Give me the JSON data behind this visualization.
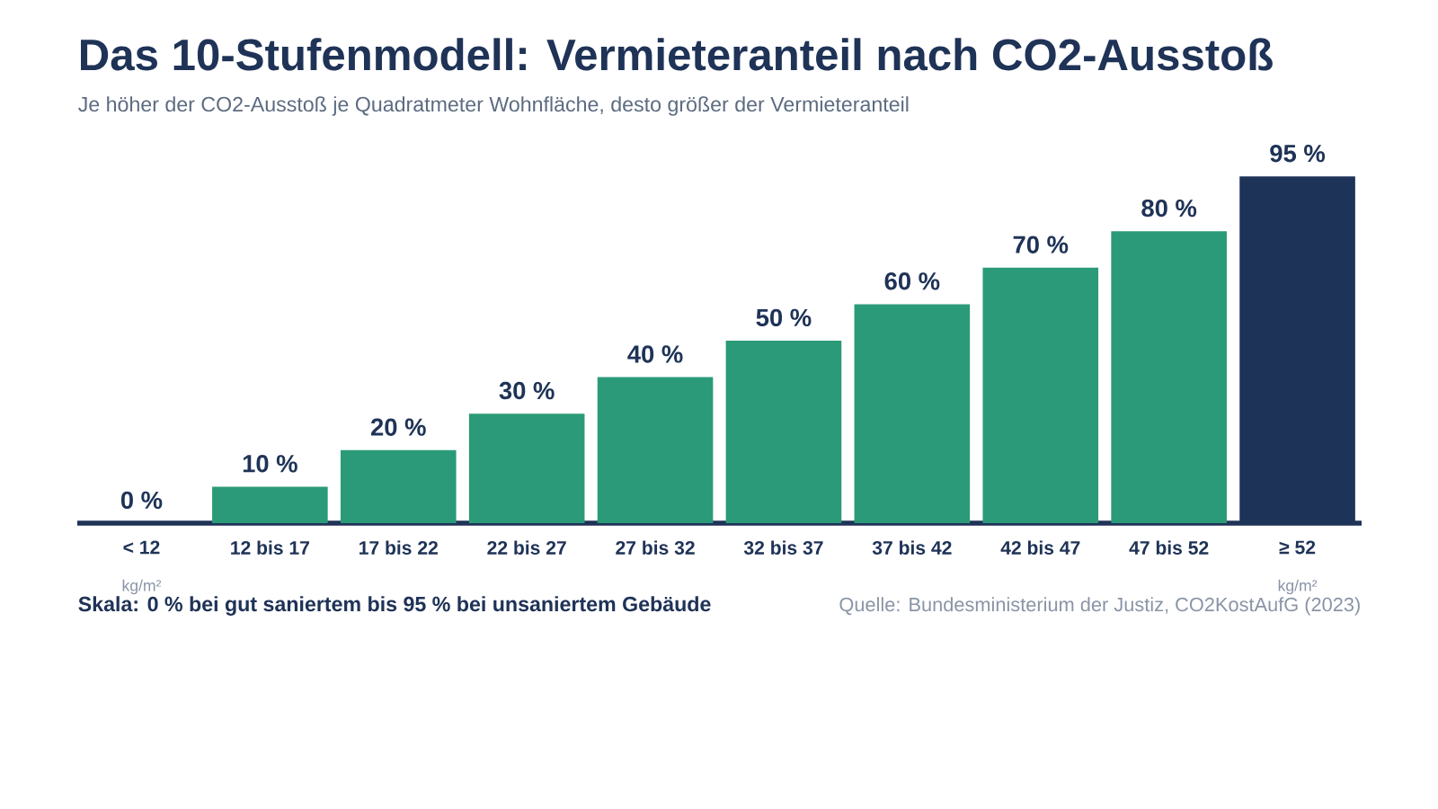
{
  "chart_data": {
    "type": "bar",
    "title": "Das 10-Stufenmodell: Vermieteranteil nach CO2-Ausstoß",
    "subtitle": "Je höher der CO2-Ausstoß je Quadratmeter Wohnfläche, desto größer der Vermieteranteil",
    "categories": [
      "< 12",
      "12 bis 17",
      "17 bis 22",
      "22 bis 27",
      "27 bis 32",
      "32 bis 37",
      "37 bis 42",
      "42 bis 47",
      "47 bis 52",
      "≥ 52"
    ],
    "values": [
      0,
      10,
      20,
      30,
      40,
      50,
      60,
      70,
      80,
      95
    ],
    "value_labels": [
      "0 %",
      "10 %",
      "20 %",
      "30 %",
      "40 %",
      "50 %",
      "60 %",
      "70 %",
      "80 %",
      "95 %"
    ],
    "colors": [
      "#d6dce4",
      "#2b9a78",
      "#2b9a78",
      "#2b9a78",
      "#2b9a78",
      "#2b9a78",
      "#2b9a78",
      "#2b9a78",
      "#2b9a78",
      "#1e3358"
    ],
    "annotations": [
      "kg/m²",
      "kg/m²",
      "Skala: 0 % bei gut saniertem bis 95 % bei unsaniertem Gebäude",
      "Quelle: Bundesministerium der Justiz, CO2KostAufG (2023)"
    ],
    "data_labels": false
  }
}
